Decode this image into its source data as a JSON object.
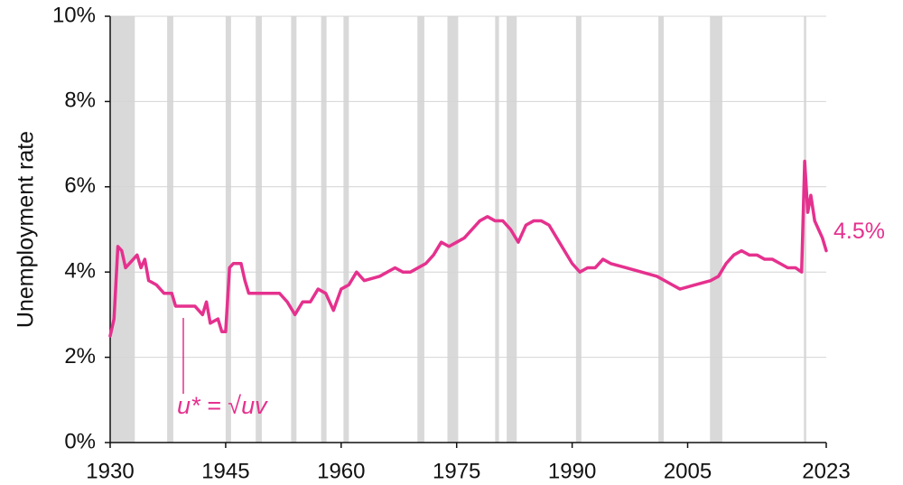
{
  "chart_data": {
    "type": "line",
    "y_label": "Unemployment rate",
    "annotation": "u* = √uv",
    "xlim": [
      1930,
      2023
    ],
    "xticks": [
      1930,
      1945,
      1960,
      1975,
      1990,
      2005,
      2023
    ],
    "ylim": [
      0,
      10
    ],
    "yticks": [
      {
        "value": 0,
        "label": "0%"
      },
      {
        "value": 2,
        "label": "2%"
      },
      {
        "value": 4,
        "label": "4%"
      },
      {
        "value": 6,
        "label": "6%"
      },
      {
        "value": 8,
        "label": "8%"
      },
      {
        "value": 10,
        "label": "10%"
      }
    ],
    "grid": true,
    "recession_color": "#d9d9d9",
    "recessions": [
      [
        1929.6,
        1933.2
      ],
      [
        1937.4,
        1938.2
      ],
      [
        1945.0,
        1945.7
      ],
      [
        1948.9,
        1949.7
      ],
      [
        1953.5,
        1954.2
      ],
      [
        1957.4,
        1958.1
      ],
      [
        1960.3,
        1961.0
      ],
      [
        1969.9,
        1970.8
      ],
      [
        1973.8,
        1975.2
      ],
      [
        1980.0,
        1980.5
      ],
      [
        1981.5,
        1982.8
      ],
      [
        1990.5,
        1991.2
      ],
      [
        2001.2,
        2001.9
      ],
      [
        2007.9,
        2009.5
      ],
      [
        2020.1,
        2020.4
      ]
    ],
    "x": [
      1930,
      1930.5,
      1931,
      1931.5,
      1932,
      1933,
      1933.5,
      1934,
      1934.5,
      1935,
      1936,
      1937,
      1938,
      1938.5,
      1940,
      1941,
      1942,
      1942.5,
      1943,
      1944,
      1944.5,
      1945,
      1945.5,
      1946,
      1947,
      1947.5,
      1948,
      1950,
      1952,
      1953,
      1954,
      1955,
      1956,
      1957,
      1958,
      1959,
      1960,
      1961,
      1962,
      1963,
      1965,
      1967,
      1968,
      1969,
      1971,
      1972,
      1973,
      1974,
      1975,
      1976,
      1977,
      1978,
      1979,
      1980,
      1981,
      1982,
      1983,
      1984,
      1985,
      1986,
      1987,
      1988,
      1989,
      1990,
      1991,
      1992,
      1993,
      1994,
      1995,
      1997,
      1999,
      2001,
      2002,
      2003,
      2004,
      2006,
      2008,
      2009,
      2010,
      2011,
      2012,
      2013,
      2014,
      2015,
      2016,
      2017,
      2018,
      2019,
      2019.8,
      2020.2,
      2020.6,
      2021,
      2021.5,
      2022,
      2022.5,
      2023
    ],
    "series": [
      {
        "color": "#e5318e",
        "values": [
          2.5,
          2.9,
          4.6,
          4.5,
          4.1,
          4.3,
          4.4,
          4.1,
          4.3,
          3.8,
          3.7,
          3.5,
          3.5,
          3.2,
          3.2,
          3.2,
          3.0,
          3.3,
          2.8,
          2.9,
          2.6,
          2.6,
          4.1,
          4.2,
          4.2,
          3.8,
          3.5,
          3.5,
          3.5,
          3.3,
          3.0,
          3.3,
          3.3,
          3.6,
          3.5,
          3.1,
          3.6,
          3.7,
          4.0,
          3.8,
          3.9,
          4.1,
          4.0,
          4.0,
          4.2,
          4.4,
          4.7,
          4.6,
          4.7,
          4.8,
          5.0,
          5.2,
          5.3,
          5.2,
          5.2,
          5.0,
          4.7,
          5.1,
          5.2,
          5.2,
          5.1,
          4.8,
          4.5,
          4.2,
          4.0,
          4.1,
          4.1,
          4.3,
          4.2,
          4.1,
          4.0,
          3.9,
          3.8,
          3.7,
          3.6,
          3.7,
          3.8,
          3.9,
          4.2,
          4.4,
          4.5,
          4.4,
          4.4,
          4.3,
          4.3,
          4.2,
          4.1,
          4.1,
          4.0,
          6.6,
          5.4,
          5.8,
          5.2,
          5.0,
          4.8,
          4.5
        ],
        "value_labels": [
          null,
          null,
          null,
          null,
          null,
          null,
          null,
          null,
          null,
          null,
          null,
          null,
          null,
          null,
          null,
          null,
          null,
          null,
          null,
          null,
          null,
          null,
          null,
          null,
          null,
          null,
          null,
          null,
          null,
          null,
          null,
          null,
          null,
          null,
          null,
          null,
          null,
          null,
          null,
          null,
          null,
          null,
          null,
          null,
          null,
          null,
          null,
          null,
          null,
          null,
          null,
          null,
          null,
          null,
          null,
          null,
          null,
          null,
          null,
          null,
          null,
          null,
          null,
          null,
          null,
          null,
          null,
          null,
          null,
          null,
          null,
          null,
          null,
          null,
          null,
          null,
          null,
          null,
          null,
          null,
          null,
          null,
          null,
          null,
          null,
          null,
          null,
          null,
          null,
          null,
          null,
          null,
          null,
          null,
          null,
          "4.5%"
        ]
      }
    ]
  }
}
